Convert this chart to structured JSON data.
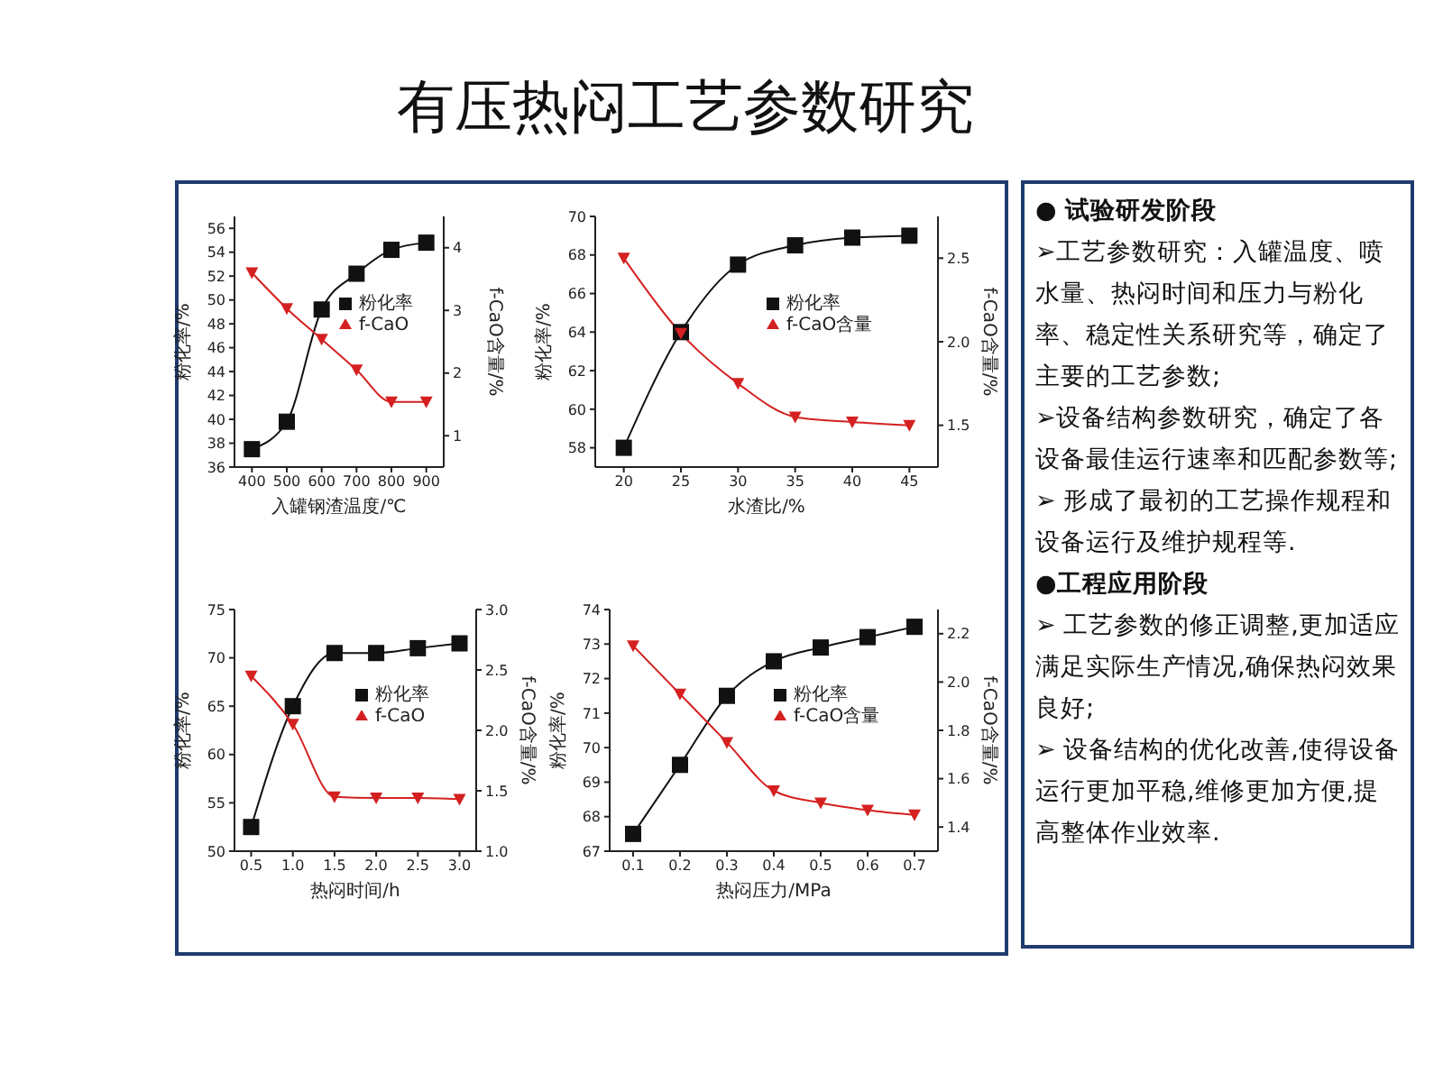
{
  "chart_data": [
    {
      "type": "other",
      "title": "有压热闷工艺参数研究",
      "annotations": [
        "● 试验研发阶段",
        "➢工艺参数研究：入罐温度、喷水量、热闷时间和压力与粉化率、稳定性关系研究等，确定了主要的工艺参数;",
        "➢设备结构参数研究，确定了各设备最佳运行速率和匹配参数等;",
        "➢ 形成了最初的工艺操作规程和设备运行及维护规程等.",
        "●工程应用阶段",
        "➢ 工艺参数的修正调整,更加适应满足实际生产情况,确保热闷效果良好;",
        "➢ 设备结构的优化改善,使得设备运行更加平稳,维修更加方便,提高整体作业效率."
      ]
    },
    {
      "type": "line",
      "xlabel": "入罐钢渣温度/℃",
      "ylabel": "粉化率/%",
      "y2label": "f-CaO含量/%",
      "x": [
        400,
        500,
        600,
        700,
        800,
        900
      ],
      "xlim": [
        350,
        950
      ],
      "xticks": [
        400,
        500,
        600,
        700,
        800,
        900
      ],
      "ylim": [
        36,
        57
      ],
      "yticks": [
        36,
        38,
        40,
        42,
        44,
        46,
        48,
        50,
        52,
        54,
        56
      ],
      "y2lim": [
        0.5,
        4.5
      ],
      "y2ticks": [
        1,
        2,
        3,
        4
      ],
      "legend": "center",
      "series": [
        {
          "name": "粉化率",
          "color": "#111111",
          "marker": "square",
          "values": [
            37.5,
            39.8,
            49.2,
            52.2,
            54.2,
            54.8
          ]
        },
        {
          "name": "f-CaO",
          "color": "#d42020",
          "marker": "triangle",
          "axis": "y2",
          "values": [
            3.6,
            3.03,
            2.54,
            2.05,
            1.54,
            1.54
          ]
        }
      ]
    },
    {
      "type": "line",
      "xlabel": "水渣比/%",
      "ylabel": "粉化率/%",
      "y2label": "f-CaO含量/%",
      "x": [
        20,
        25,
        30,
        35,
        40,
        45
      ],
      "xlim": [
        17.5,
        47.5
      ],
      "xticks": [
        20,
        25,
        30,
        35,
        40,
        45
      ],
      "ylim": [
        57,
        70
      ],
      "yticks": [
        58,
        60,
        62,
        64,
        66,
        68,
        70
      ],
      "y2lim": [
        1.25,
        2.75
      ],
      "y2ticks": [
        1.5,
        {
          "value": 2,
          "label": "2.0"
        },
        2.5
      ],
      "legend": "center",
      "series": [
        {
          "name": "粉化率",
          "color": "#111111",
          "marker": "square",
          "values": [
            58,
            64,
            67.5,
            68.5,
            68.9,
            69
          ]
        },
        {
          "name": "f-CaO含量",
          "color": "#d42020",
          "marker": "triangle",
          "axis": "y2",
          "values": [
            2.5,
            2.05,
            1.75,
            1.55,
            1.52,
            1.5
          ]
        }
      ]
    },
    {
      "type": "line",
      "xlabel": "热闷时间/h",
      "ylabel": "粉化率/%",
      "y2label": "f-CaO含量/%",
      "x": [
        0.5,
        1,
        1.5,
        2,
        2.5,
        3
      ],
      "xlim": [
        0.3,
        3.2
      ],
      "xticks": [
        0.5,
        {
          "value": 1,
          "label": "1.0"
        },
        1.5,
        {
          "value": 2,
          "label": "2.0"
        },
        2.5,
        {
          "value": 3,
          "label": "3.0"
        }
      ],
      "ylim": [
        50,
        75
      ],
      "yticks": [
        50,
        55,
        60,
        65,
        70,
        75
      ],
      "y2lim": [
        1,
        3
      ],
      "y2ticks": [
        {
          "value": 1,
          "label": "1.0"
        },
        1.5,
        {
          "value": 2,
          "label": "2.0"
        },
        2.5,
        {
          "value": 3,
          "label": "3.0"
        }
      ],
      "legend": "center",
      "series": [
        {
          "name": "粉化率",
          "color": "#111111",
          "marker": "square",
          "values": [
            52.5,
            65,
            70.5,
            70.5,
            71,
            71.5
          ]
        },
        {
          "name": "f-CaO",
          "color": "#d42020",
          "marker": "triangle",
          "axis": "y2",
          "values": [
            2.45,
            2.05,
            1.45,
            1.44,
            1.44,
            1.43
          ]
        }
      ]
    },
    {
      "type": "line",
      "xlabel": "热闷压力/MPa",
      "ylabel": "粉化率/%",
      "y2label": "f-CaO含量/%",
      "x": [
        0.1,
        0.2,
        0.3,
        0.4,
        0.5,
        0.6,
        0.7
      ],
      "xlim": [
        0.05,
        0.75
      ],
      "xticks": [
        0.1,
        0.2,
        0.3,
        0.4,
        0.5,
        0.6,
        0.7
      ],
      "ylim": [
        67,
        74
      ],
      "yticks": [
        67,
        68,
        69,
        70,
        71,
        72,
        73,
        74
      ],
      "y2lim": [
        1.3,
        2.3
      ],
      "y2ticks": [
        1.4,
        1.6,
        1.8,
        {
          "value": 2,
          "label": "2.0"
        },
        2.2
      ],
      "legend": "center",
      "series": [
        {
          "name": "粉化率",
          "color": "#111111",
          "marker": "square",
          "values": [
            67.5,
            69.5,
            71.5,
            72.5,
            72.9,
            73.2,
            73.5
          ]
        },
        {
          "name": "f-CaO含量",
          "color": "#d42020",
          "marker": "triangle",
          "axis": "y2",
          "values": [
            2.15,
            1.95,
            1.75,
            1.55,
            1.5,
            1.47,
            1.45
          ]
        }
      ]
    }
  ]
}
